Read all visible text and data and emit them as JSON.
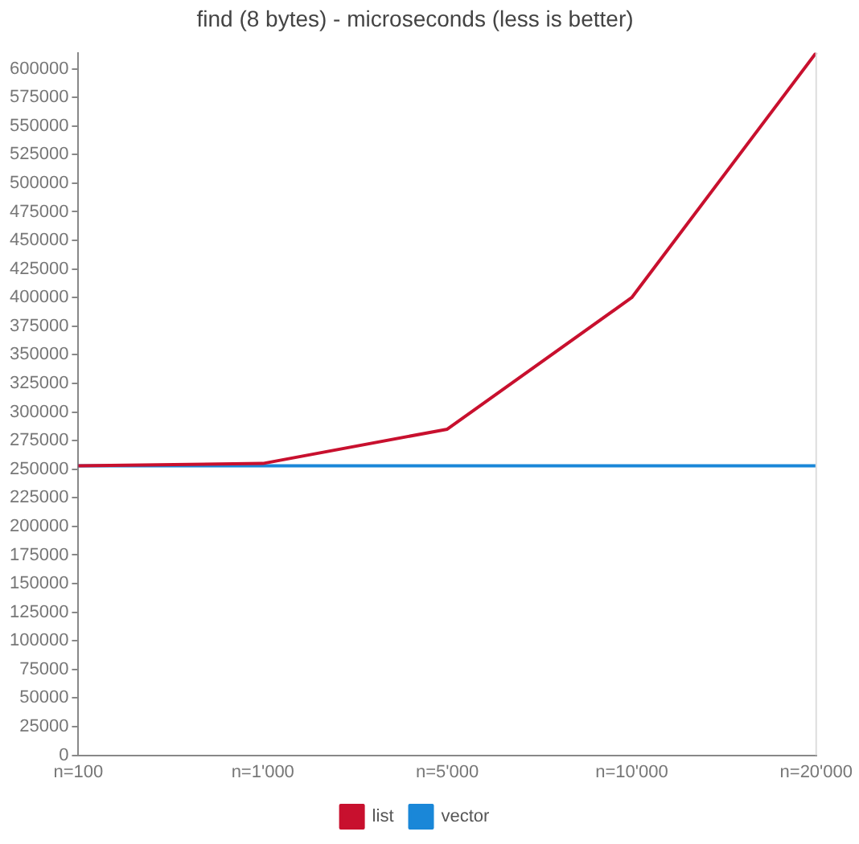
{
  "chart_data": {
    "type": "line",
    "title": "find (8 bytes) - microseconds (less is better)",
    "categories": [
      "n=100",
      "n=1'000",
      "n=5'000",
      "n=10'000",
      "n=20'000"
    ],
    "series": [
      {
        "name": "list",
        "color": "#c8102e",
        "values": [
          253000,
          255000,
          285000,
          400000,
          614000
        ]
      },
      {
        "name": "vector",
        "color": "#1a87d8",
        "values": [
          253000,
          253000,
          253000,
          253000,
          253000
        ]
      }
    ],
    "ylim": [
      0,
      614000
    ],
    "yticks": [
      0,
      25000,
      50000,
      75000,
      100000,
      125000,
      150000,
      175000,
      200000,
      225000,
      250000,
      275000,
      300000,
      325000,
      350000,
      375000,
      400000,
      425000,
      450000,
      475000,
      500000,
      525000,
      550000,
      575000,
      600000
    ],
    "grid": false,
    "legend": "bottom",
    "marker": "none",
    "line_style": "solid"
  }
}
